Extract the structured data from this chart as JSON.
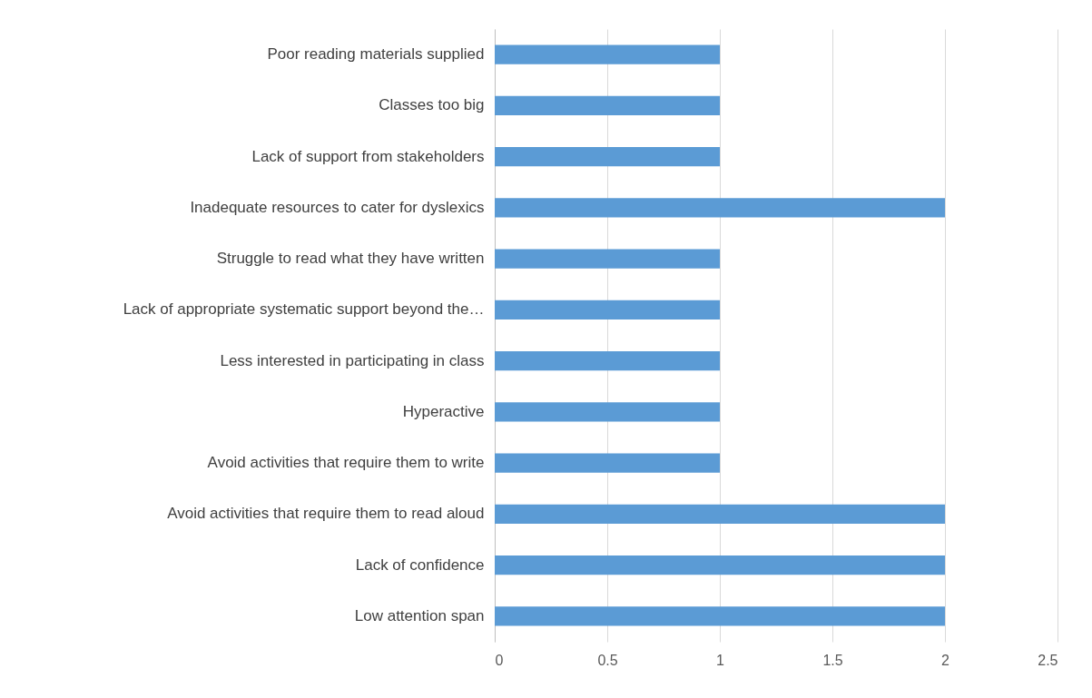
{
  "chart_data": {
    "type": "bar",
    "orientation": "horizontal",
    "categories": [
      "Poor reading materials supplied",
      "Classes too big",
      "Lack of support from stakeholders",
      "Inadequate resources to cater for dyslexics",
      "Struggle to read what they have written",
      "Lack of appropriate systematic support beyond the…",
      "Less interested in participating in class",
      "Hyperactive",
      "Avoid activities that require them to write",
      "Avoid activities that require them  to read aloud",
      "Lack of confidence",
      "Low attention span"
    ],
    "values": [
      1,
      1,
      1,
      2,
      1,
      1,
      1,
      1,
      1,
      2,
      2,
      2
    ],
    "color": "#5b9bd5",
    "xlim": [
      0,
      2.5
    ],
    "xticks": [
      0,
      0.5,
      1,
      1.5,
      2,
      2.5
    ],
    "grid": "x"
  }
}
